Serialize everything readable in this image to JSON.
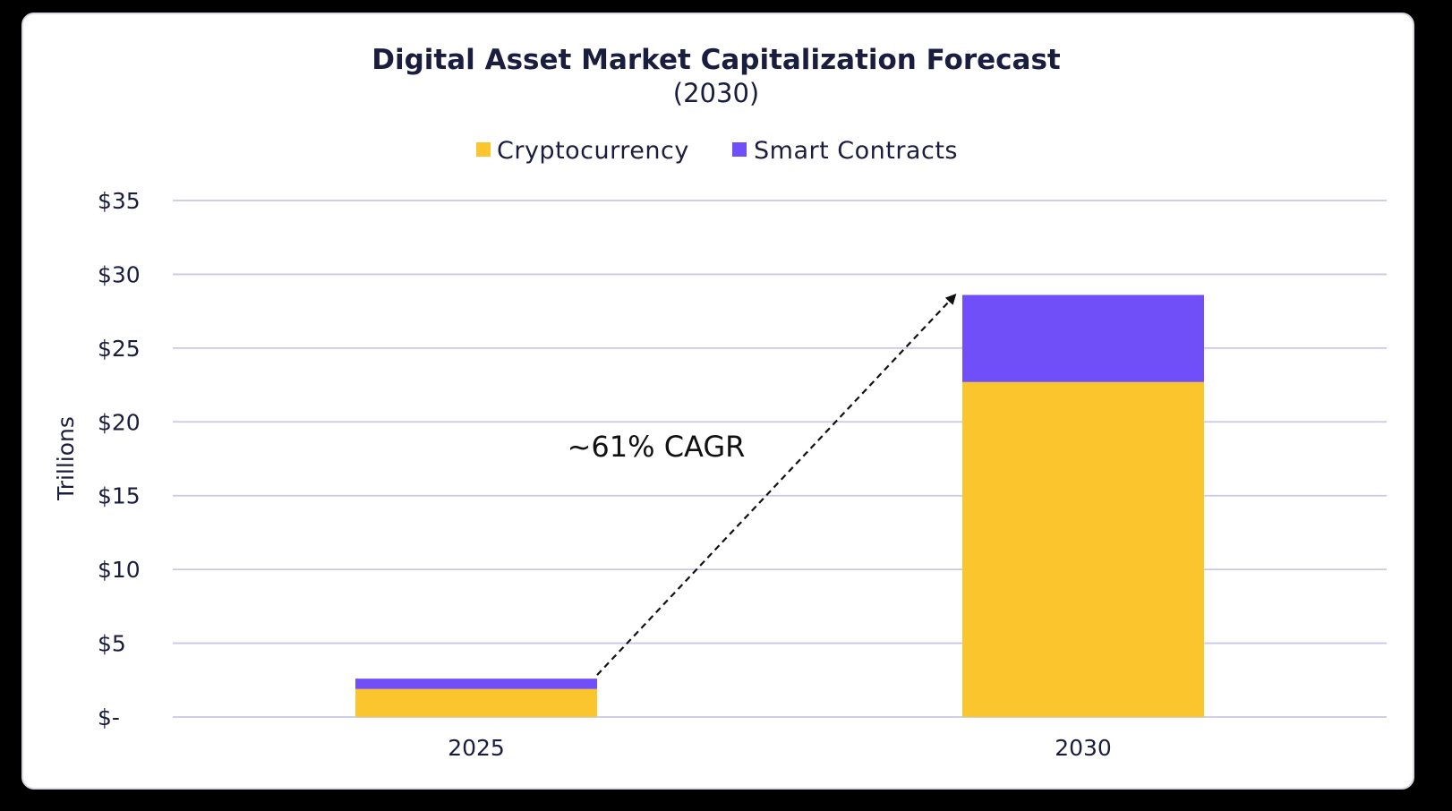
{
  "chart_data": {
    "type": "bar",
    "stacked": true,
    "title": "Digital Asset Market Capitalization Forecast",
    "subtitle": "(2030)",
    "categories": [
      "2025",
      "2030"
    ],
    "series": [
      {
        "name": "Cryptocurrency",
        "color": "#fbc52d",
        "values": [
          1.9,
          22.7
        ]
      },
      {
        "name": "Smart Contracts",
        "color": "#714ff8",
        "values": [
          0.7,
          5.9
        ]
      }
    ],
    "ylabel": "Trillions",
    "xlabel": "",
    "ylim": [
      0,
      35
    ],
    "yticks": [
      {
        "value": 0,
        "label": "$-"
      },
      {
        "value": 5,
        "label": "$5"
      },
      {
        "value": 10,
        "label": "$10"
      },
      {
        "value": 15,
        "label": "$15"
      },
      {
        "value": 20,
        "label": "$20"
      },
      {
        "value": 25,
        "label": "$25"
      },
      {
        "value": 30,
        "label": "$30"
      },
      {
        "value": 35,
        "label": "$35"
      }
    ],
    "grid": true,
    "legend_position": "top-center",
    "annotation": {
      "text": "~61% CAGR",
      "from_category": "2025",
      "to_category": "2030"
    }
  },
  "colors": {
    "gridline": "#c9c8e6",
    "text": "#1b1d3f",
    "arrow": "#111111"
  }
}
